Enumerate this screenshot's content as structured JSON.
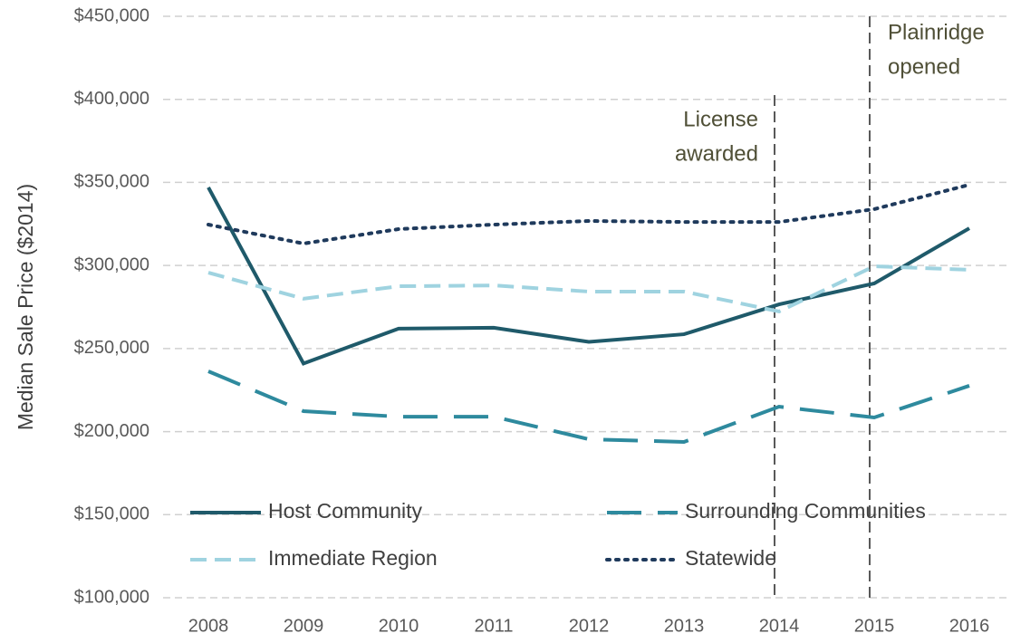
{
  "chart_data": {
    "type": "line",
    "y_label": "Median Sale Price ($2014)",
    "categories": [
      "2008",
      "2009",
      "2010",
      "2011",
      "2012",
      "2013",
      "2014",
      "2015",
      "2016"
    ],
    "series": [
      {
        "name": "Host Community",
        "color": "#1f5a6a",
        "dash": "solid",
        "values": [
          347000,
          241000,
          262000,
          262500,
          254000,
          258600,
          276600,
          289200,
          322400
        ]
      },
      {
        "name": "Surrounding Communities",
        "color": "#2e8a9e",
        "dash": "long",
        "values": [
          236300,
          212300,
          209000,
          209000,
          195400,
          193800,
          215000,
          208500,
          227600
        ]
      },
      {
        "name": "Immediate Region",
        "color": "#9fd3e0",
        "dash": "dashed",
        "values": [
          295700,
          280000,
          287500,
          288000,
          284300,
          284300,
          272300,
          299500,
          297400
        ]
      },
      {
        "name": "Statewide",
        "color": "#1f3a5c",
        "dash": "dotted",
        "values": [
          324600,
          313200,
          321900,
          324600,
          326800,
          326200,
          326200,
          333900,
          348600
        ]
      }
    ],
    "ylim": [
      100000,
      450000
    ],
    "yticks": [
      {
        "value": 100000,
        "label": "$100,000"
      },
      {
        "value": 150000,
        "label": "$150,000"
      },
      {
        "value": 200000,
        "label": "$200,000"
      },
      {
        "value": 250000,
        "label": "$250,000"
      },
      {
        "value": 300000,
        "label": "$300,000"
      },
      {
        "value": 350000,
        "label": "$350,000"
      },
      {
        "value": 400000,
        "label": "$400,000"
      },
      {
        "value": 450000,
        "label": "$450,000"
      }
    ],
    "grid": true,
    "legend": "bottom",
    "annotations": [
      {
        "at": "2014",
        "lines": [
          "License",
          "awarded"
        ]
      },
      {
        "at": "2015",
        "lines": [
          "Plainridge",
          "opened"
        ]
      }
    ]
  }
}
